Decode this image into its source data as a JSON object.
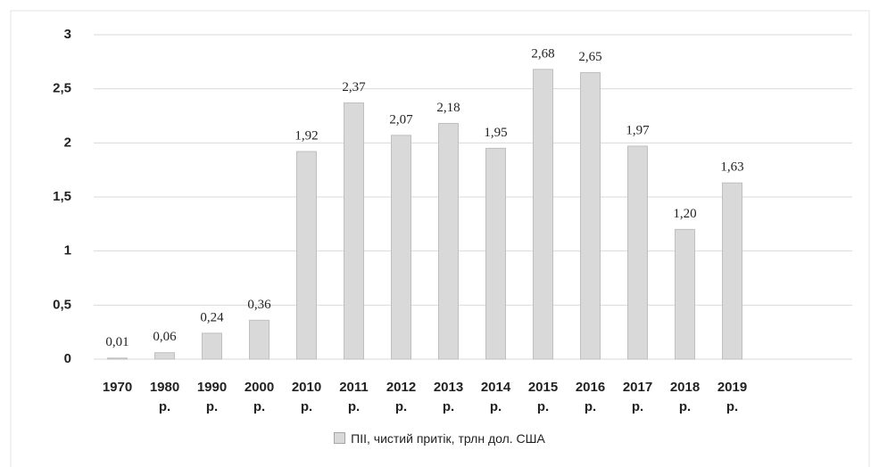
{
  "chart_data": {
    "type": "bar",
    "categories": [
      "1970",
      "1980 р.",
      "1990 р.",
      "2000 р.",
      "2010 р.",
      "2011 р.",
      "2012 р.",
      "2013 р.",
      "2014 р.",
      "2015 р.",
      "2016 р.",
      "2017 р.",
      "2018 р.",
      "2019 р."
    ],
    "series": [
      {
        "name": "ПІІ, чистий притік, трлн дол. США",
        "color": "#d9d9d9",
        "values": [
          0.01,
          0.06,
          0.24,
          0.36,
          1.92,
          2.37,
          2.07,
          2.18,
          1.95,
          2.68,
          2.65,
          1.97,
          1.2,
          1.63
        ],
        "value_labels": [
          "0,01",
          "0,06",
          "0,24",
          "0,36",
          "1,92",
          "2,37",
          "2,07",
          "2,18",
          "1,95",
          "2,68",
          "2,65",
          "1,97",
          "1,20",
          "1,63"
        ]
      }
    ],
    "ylim": [
      0,
      3
    ],
    "yticks": [
      0,
      {
        "value": 0.5,
        "label": "0,5"
      },
      1,
      {
        "value": 1.5,
        "label": "1,5"
      },
      2,
      {
        "value": 2.5,
        "label": "2,5"
      },
      3
    ],
    "grid": true,
    "legend": "bottom"
  }
}
